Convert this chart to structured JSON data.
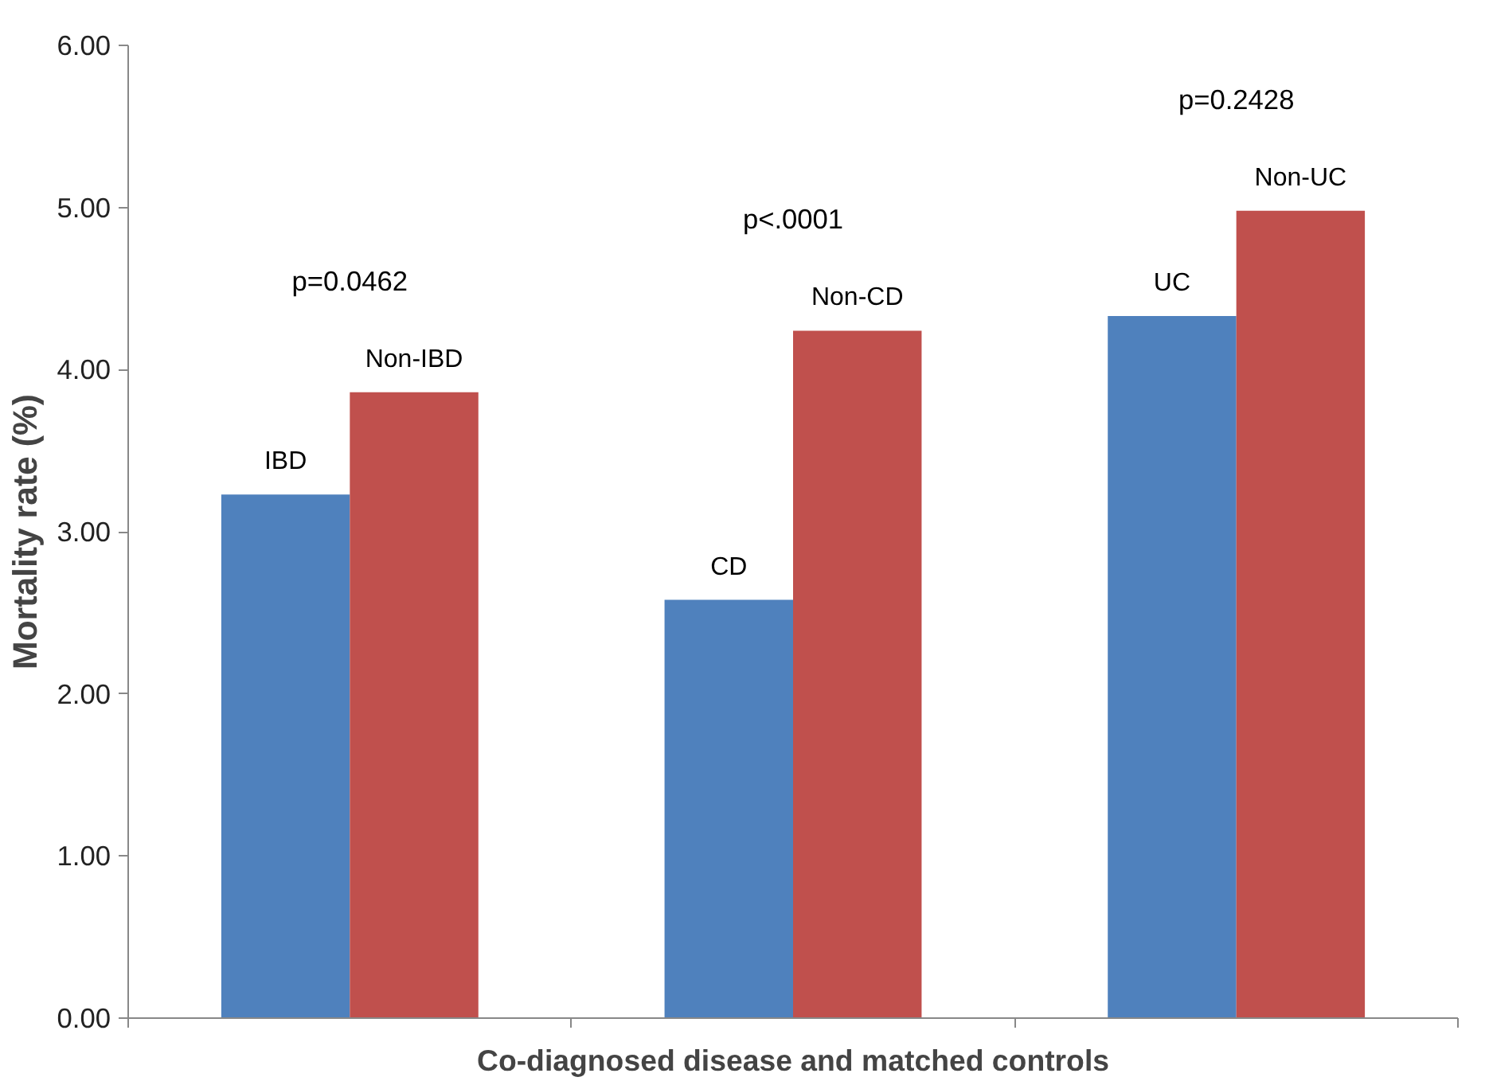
{
  "chart_data": {
    "type": "bar",
    "xlabel": "Co-diagnosed disease and matched controls",
    "ylabel": "Mortality rate (%)",
    "categories": [
      null,
      null,
      null
    ],
    "series": [
      {
        "color": "#4f81bd",
        "values": [
          3.23,
          2.58,
          4.33
        ]
      },
      {
        "color": "#c0504d",
        "values": [
          3.86,
          4.24,
          4.98
        ]
      }
    ],
    "ylim": [
      0,
      6
    ],
    "yticks": [
      {
        "value": 0,
        "label": "0.00"
      },
      {
        "value": 1,
        "label": "1.00"
      },
      {
        "value": 2,
        "label": "2.00"
      },
      {
        "value": 3,
        "label": "3.00"
      },
      {
        "value": 4,
        "label": "4.00"
      },
      {
        "value": 5,
        "label": "5.00"
      },
      {
        "value": 6,
        "label": "6.00"
      }
    ],
    "grid": false,
    "annotations": [
      {
        "text": "IBD",
        "y": 3.23
      },
      {
        "text": "Non-IBD",
        "y": 3.86
      },
      {
        "text": "CD",
        "y": 2.58
      },
      {
        "text": "Non-CD",
        "y": 4.24
      },
      {
        "text": "UC",
        "y": 4.33
      },
      {
        "text": "Non-UC",
        "y": 4.98
      },
      "p=0.0462",
      "p<.0001",
      "p=0.2428"
    ]
  }
}
